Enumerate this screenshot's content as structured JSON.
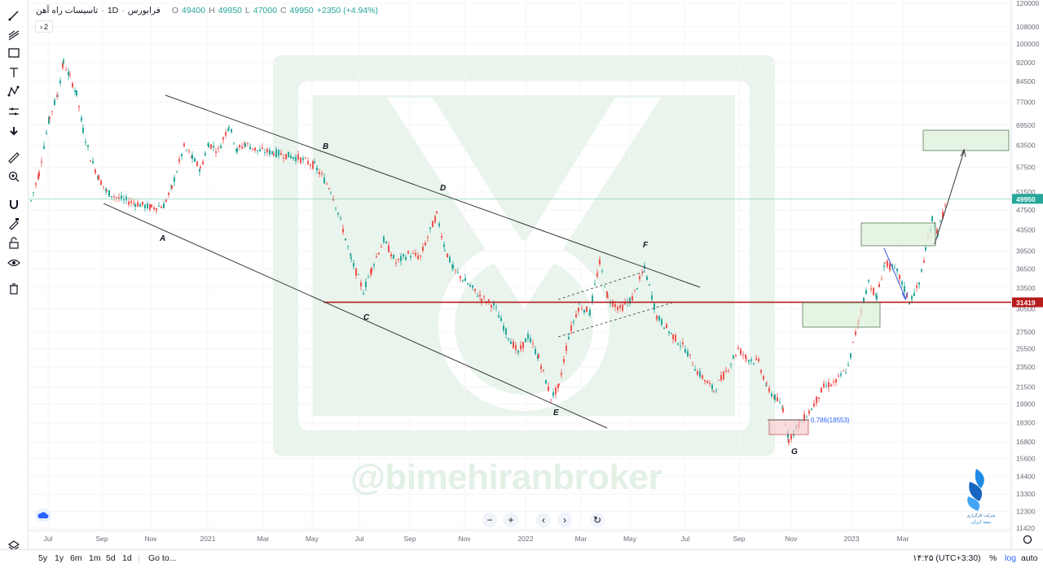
{
  "legend": {
    "symbol": "تاسیسات راه آهن",
    "interval": "1D",
    "exchange": "فرابورس",
    "open_label": "O",
    "open": "49400",
    "high_label": "H",
    "high": "49950",
    "low_label": "L",
    "low": "47000",
    "close_label": "C",
    "close": "49950",
    "change": "+2350 (+4.94%)",
    "collapse_count": "2"
  },
  "chart_data": {
    "type": "candlestick",
    "y_scale": "log",
    "y_ticks": [
      120000,
      108000,
      100000,
      92000,
      84500,
      77000,
      69500,
      63500,
      57500,
      51500,
      47500,
      43500,
      39500,
      36500,
      33500,
      30500,
      27500,
      25500,
      23500,
      21500,
      19900,
      18300,
      16800,
      15600,
      14400,
      13300,
      12300,
      11420
    ],
    "x_ticks": [
      "Jul",
      "Sep",
      "Nov",
      "2021",
      "Mar",
      "May",
      "Jul",
      "Sep",
      "Nov",
      "2022",
      "Mar",
      "May",
      "Jul",
      "Sep",
      "Nov",
      "2023",
      "Mar"
    ],
    "last_price": "49950",
    "horizontal_level": "31419",
    "fib_label": "0.786(18553)",
    "wave_labels": [
      "A",
      "B",
      "C",
      "D",
      "E",
      "F",
      "G"
    ],
    "up_color": "#26a69a",
    "down_color": "#ef5350"
  },
  "watermark": "@bimehiranbroker",
  "broker": {
    "line1": "شرکت کارگزاری",
    "line2": "بیمه ایران"
  },
  "bottom": {
    "timeframes": [
      "5y",
      "1y",
      "6m",
      "1m",
      "5d",
      "1d"
    ],
    "goto": "Go to...",
    "clock": "۱۴:۲۵ (UTC+3:30)",
    "percent": "%",
    "log": "log",
    "auto": "auto"
  },
  "icons": [
    "brush-icon",
    "multi-line-icon",
    "rectangle-icon",
    "text-icon",
    "pattern-icon",
    "measure-fork-icon",
    "arrow-down-icon",
    "ruler-icon",
    "zoom-icon",
    "magnet-icon",
    "lock-pencil-icon",
    "lock-icon",
    "eye-icon",
    "trash-icon",
    "layers-icon",
    "settings-icon",
    "reset-icon"
  ]
}
